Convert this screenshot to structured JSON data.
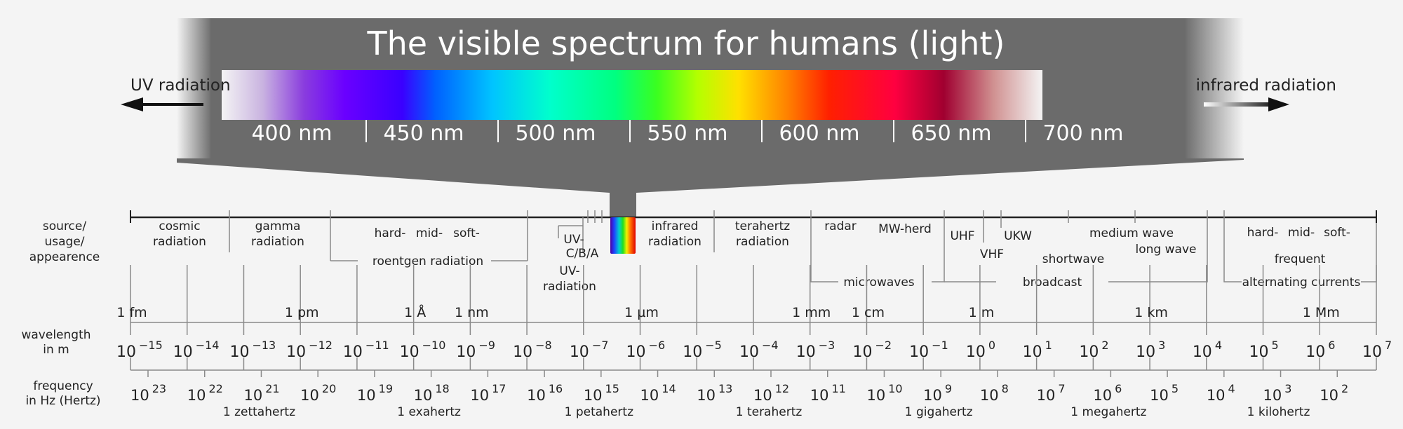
{
  "title": "The visible spectrum for humans (light)",
  "uv_label": "UV radiation",
  "ir_label": "infrared radiation",
  "visible_ticks": [
    "400 nm",
    "450 nm",
    "500 nm",
    "550 nm",
    "600 nm",
    "650 nm",
    "700 nm"
  ],
  "row_labels": {
    "source": [
      "source/",
      "usage/",
      "appearence"
    ],
    "wavelength": [
      "wavelength",
      "in m"
    ],
    "frequency": [
      "frequency",
      "in Hz (Hertz)"
    ]
  },
  "bands": {
    "cosmic": [
      "cosmic",
      "radiation"
    ],
    "gamma": [
      "gamma",
      "radiation"
    ],
    "hard1": "hard-",
    "mid1": "mid-",
    "soft1": "soft-",
    "roentgen": "roentgen radiation",
    "uv_cba": [
      "UV-",
      "C/B/A"
    ],
    "uv_rad": [
      "UV-",
      "radiation"
    ],
    "infrared": [
      "infrared",
      "radiation"
    ],
    "terahertz": [
      "terahertz",
      "radiation"
    ],
    "radar": "radar",
    "mwherd": "MW-herd",
    "microwaves": "microwaves",
    "uhf": "UHF",
    "vhf": "VHF",
    "ukw": "UKW",
    "medium_wave": "medium wave",
    "long_wave": "long wave",
    "shortwave": "shortwave",
    "broadcast": "broadcast",
    "hard2": "hard-",
    "mid2": "mid-",
    "soft2": "soft-",
    "frequent": "frequent",
    "alternating": "alternating currents"
  },
  "length_units": [
    {
      "label": "1 fm",
      "exp": -15
    },
    {
      "label": "1 pm",
      "exp": -12
    },
    {
      "label": "1 Å",
      "exp": -10
    },
    {
      "label": "1 nm",
      "exp": -9
    },
    {
      "label": "1 µm",
      "exp": -6
    },
    {
      "label": "1 mm",
      "exp": -3
    },
    {
      "label": "1 cm",
      "exp": -2
    },
    {
      "label": "1 m",
      "exp": 0
    },
    {
      "label": "1 km",
      "exp": 3
    },
    {
      "label": "1 Mm",
      "exp": 6
    }
  ],
  "wavelength_base": "10",
  "wavelength_exponents": [
    "−15",
    "−14",
    "−13",
    "−12",
    "−11",
    "−10",
    "−9",
    "−8",
    "−7",
    "−6",
    "−5",
    "−4",
    "−3",
    "−2",
    "−1",
    "0",
    "1",
    "2",
    "3",
    "4",
    "5",
    "6",
    "7"
  ],
  "frequency_base": "10",
  "frequency_exponents": [
    "23",
    "22",
    "21",
    "20",
    "19",
    "18",
    "17",
    "16",
    "15",
    "14",
    "13",
    "12",
    "11",
    "10",
    "9",
    "8",
    "7",
    "6",
    "5",
    "4",
    "3",
    "2"
  ],
  "frequency_units": [
    {
      "label": "1 zettahertz",
      "exp": 21
    },
    {
      "label": "1 exahertz",
      "exp": 18
    },
    {
      "label": "1 petahertz",
      "exp": 15
    },
    {
      "label": "1 terahertz",
      "exp": 12
    },
    {
      "label": "1 gigahertz",
      "exp": 9
    },
    {
      "label": "1 megahertz",
      "exp": 6
    },
    {
      "label": "1 kilohertz",
      "exp": 3
    }
  ],
  "colors": {
    "banner": "#6b6b6b",
    "banner_text": "#ffffff",
    "background": "#f4f4f4",
    "line": "#8a8a8a"
  }
}
